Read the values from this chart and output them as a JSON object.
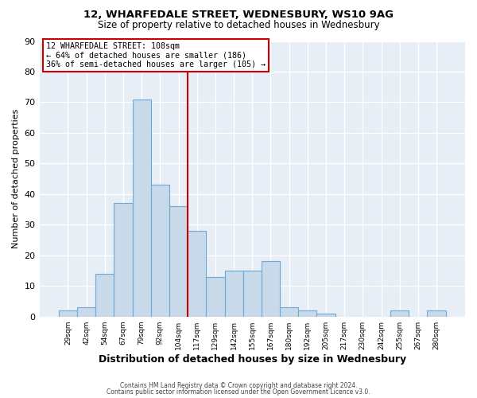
{
  "title": "12, WHARFEDALE STREET, WEDNESBURY, WS10 9AG",
  "subtitle": "Size of property relative to detached houses in Wednesbury",
  "xlabel": "Distribution of detached houses by size in Wednesbury",
  "ylabel": "Number of detached properties",
  "bin_labels": [
    "29sqm",
    "42sqm",
    "54sqm",
    "67sqm",
    "79sqm",
    "92sqm",
    "104sqm",
    "117sqm",
    "129sqm",
    "142sqm",
    "155sqm",
    "167sqm",
    "180sqm",
    "192sqm",
    "205sqm",
    "217sqm",
    "230sqm",
    "242sqm",
    "255sqm",
    "267sqm",
    "280sqm"
  ],
  "bar_values": [
    2,
    3,
    14,
    37,
    71,
    43,
    36,
    28,
    13,
    15,
    15,
    18,
    3,
    2,
    1,
    0,
    0,
    0,
    2,
    0,
    2
  ],
  "bar_color": "#c8d9ea",
  "bar_edge_color": "#6aaad4",
  "vline_color": "#cc0000",
  "ylim": [
    0,
    90
  ],
  "yticks": [
    0,
    10,
    20,
    30,
    40,
    50,
    60,
    70,
    80,
    90
  ],
  "annotation_title": "12 WHARFEDALE STREET: 108sqm",
  "annotation_line1": "← 64% of detached houses are smaller (186)",
  "annotation_line2": "36% of semi-detached houses are larger (105) →",
  "annotation_box_color": "#cc0000",
  "background_color": "#e8eef6",
  "footer1": "Contains HM Land Registry data © Crown copyright and database right 2024.",
  "footer2": "Contains public sector information licensed under the Open Government Licence v3.0."
}
